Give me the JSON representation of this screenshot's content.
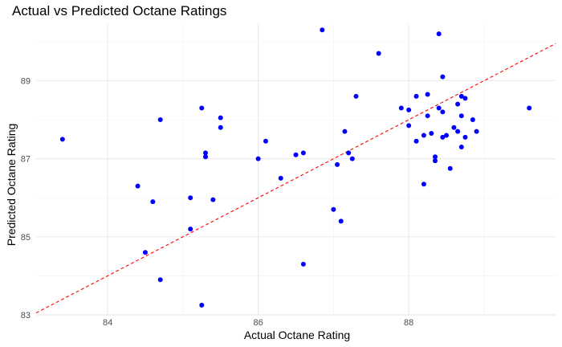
{
  "chart_data": {
    "type": "scatter",
    "title": "Actual vs Predicted Octane Ratings",
    "xlabel": "Actual Octane Rating",
    "ylabel": "Predicted Octane Rating",
    "xlim": [
      83.05,
      89.95
    ],
    "ylim": [
      83.0,
      90.45
    ],
    "x_ticks": [
      84,
      86,
      88
    ],
    "y_ticks": [
      83,
      85,
      87,
      89
    ],
    "grid": true,
    "point_color": "#0000ff",
    "reference_line": {
      "style": "dashed",
      "color": "#ff0000",
      "from": [
        83.05,
        83.05
      ],
      "to": [
        89.95,
        89.95
      ]
    },
    "series": [
      {
        "points": [
          [
            83.4,
            87.5
          ],
          [
            84.4,
            86.3
          ],
          [
            84.5,
            84.6
          ],
          [
            84.6,
            85.9
          ],
          [
            84.7,
            88.0
          ],
          [
            84.7,
            83.9
          ],
          [
            85.1,
            86.0
          ],
          [
            85.1,
            85.2
          ],
          [
            85.25,
            88.3
          ],
          [
            85.25,
            83.25
          ],
          [
            85.3,
            87.15
          ],
          [
            85.3,
            87.05
          ],
          [
            85.4,
            85.95
          ],
          [
            85.5,
            88.05
          ],
          [
            85.5,
            87.8
          ],
          [
            86.0,
            87.0
          ],
          [
            86.1,
            87.45
          ],
          [
            86.3,
            86.5
          ],
          [
            86.5,
            87.1
          ],
          [
            86.6,
            87.15
          ],
          [
            86.6,
            84.3
          ],
          [
            86.85,
            90.3
          ],
          [
            87.0,
            85.7
          ],
          [
            87.05,
            86.85
          ],
          [
            87.1,
            85.4
          ],
          [
            87.15,
            87.7
          ],
          [
            87.2,
            87.15
          ],
          [
            87.25,
            87.0
          ],
          [
            87.3,
            88.6
          ],
          [
            87.6,
            89.7
          ],
          [
            87.9,
            88.3
          ],
          [
            88.0,
            88.25
          ],
          [
            88.0,
            87.85
          ],
          [
            88.1,
            88.6
          ],
          [
            88.1,
            87.45
          ],
          [
            88.2,
            87.6
          ],
          [
            88.2,
            86.35
          ],
          [
            88.25,
            88.65
          ],
          [
            88.25,
            88.1
          ],
          [
            88.3,
            87.65
          ],
          [
            88.35,
            87.05
          ],
          [
            88.35,
            86.95
          ],
          [
            88.4,
            90.2
          ],
          [
            88.4,
            88.3
          ],
          [
            88.45,
            89.1
          ],
          [
            88.45,
            88.2
          ],
          [
            88.45,
            87.55
          ],
          [
            88.5,
            87.6
          ],
          [
            88.55,
            86.75
          ],
          [
            88.6,
            87.8
          ],
          [
            88.65,
            88.4
          ],
          [
            88.65,
            87.7
          ],
          [
            88.7,
            88.6
          ],
          [
            88.7,
            88.1
          ],
          [
            88.7,
            87.3
          ],
          [
            88.75,
            88.55
          ],
          [
            88.75,
            87.55
          ],
          [
            88.85,
            88.0
          ],
          [
            88.9,
            87.7
          ],
          [
            89.6,
            88.3
          ]
        ]
      }
    ]
  }
}
